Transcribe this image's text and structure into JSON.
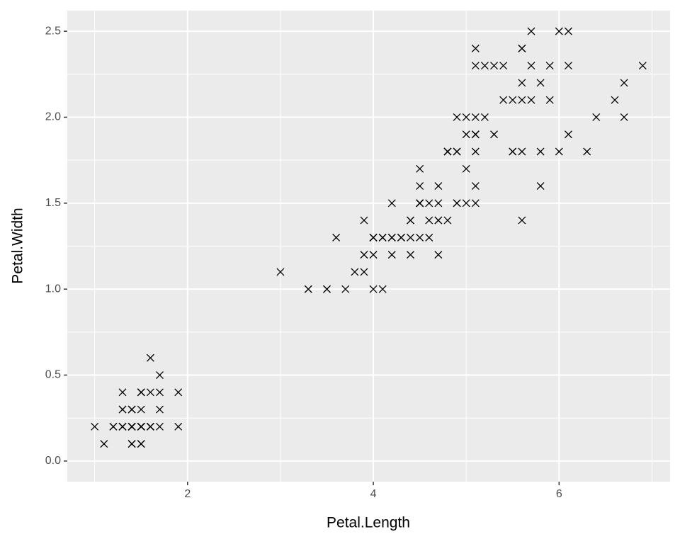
{
  "chart_data": {
    "type": "scatter",
    "x_label": "Petal.Length",
    "y_label": "Petal.Width",
    "color": "#000000",
    "grid": true,
    "xlim": [
      0.705,
      7.195
    ],
    "ylim": [
      -0.12,
      2.62
    ],
    "xticks": [
      2,
      4,
      6
    ],
    "yticks": [
      {
        "value": 0,
        "label": "0.0"
      },
      0.5,
      {
        "value": 1,
        "label": "1.0"
      },
      1.5,
      {
        "value": 2,
        "label": "2.0"
      },
      2.5
    ],
    "x": [
      1.4,
      1.4,
      1.3,
      1.5,
      1.4,
      1.7,
      1.4,
      1.5,
      1.4,
      1.5,
      1.5,
      1.6,
      1.4,
      1.1,
      1.2,
      1.5,
      1.3,
      1.4,
      1.7,
      1.5,
      1.7,
      1.5,
      1.0,
      1.7,
      1.9,
      1.6,
      1.6,
      1.5,
      1.4,
      1.6,
      1.6,
      1.5,
      1.5,
      1.4,
      1.5,
      1.2,
      1.3,
      1.4,
      1.3,
      1.5,
      1.3,
      1.3,
      1.3,
      1.6,
      1.9,
      1.4,
      1.6,
      1.4,
      1.5,
      1.4,
      4.7,
      4.5,
      4.9,
      4.0,
      4.6,
      4.5,
      4.7,
      3.3,
      4.6,
      3.9,
      3.5,
      4.2,
      4.0,
      4.7,
      3.6,
      4.4,
      4.5,
      4.1,
      4.5,
      3.9,
      4.8,
      4.0,
      4.9,
      4.7,
      4.3,
      4.4,
      4.8,
      5.0,
      4.5,
      3.5,
      3.8,
      3.7,
      3.9,
      5.1,
      4.5,
      4.5,
      4.7,
      4.4,
      4.1,
      4.0,
      4.4,
      4.6,
      4.0,
      3.3,
      4.2,
      4.2,
      4.2,
      4.3,
      3.0,
      4.1,
      6.0,
      5.1,
      5.9,
      5.6,
      5.8,
      6.6,
      4.5,
      6.3,
      5.8,
      6.1,
      5.1,
      5.3,
      5.5,
      5.0,
      5.1,
      5.3,
      5.5,
      6.7,
      6.9,
      5.0,
      5.7,
      4.9,
      6.7,
      4.9,
      5.7,
      6.0,
      4.8,
      4.9,
      5.6,
      5.8,
      6.1,
      6.4,
      5.6,
      5.1,
      5.6,
      6.1,
      5.6,
      5.5,
      4.8,
      5.4,
      5.6,
      5.1,
      5.1,
      5.9,
      5.7,
      5.2,
      5.0,
      5.2,
      5.4,
      5.1
    ],
    "values": [
      0.2,
      0.2,
      0.2,
      0.2,
      0.2,
      0.4,
      0.3,
      0.2,
      0.2,
      0.1,
      0.2,
      0.2,
      0.1,
      0.1,
      0.2,
      0.4,
      0.4,
      0.3,
      0.3,
      0.3,
      0.2,
      0.4,
      0.2,
      0.5,
      0.2,
      0.2,
      0.4,
      0.2,
      0.2,
      0.2,
      0.2,
      0.4,
      0.1,
      0.2,
      0.2,
      0.2,
      0.2,
      0.1,
      0.2,
      0.2,
      0.3,
      0.3,
      0.2,
      0.6,
      0.4,
      0.3,
      0.2,
      0.2,
      0.2,
      0.2,
      1.4,
      1.5,
      1.5,
      1.3,
      1.5,
      1.3,
      1.6,
      1.0,
      1.3,
      1.4,
      1.0,
      1.5,
      1.0,
      1.4,
      1.3,
      1.4,
      1.5,
      1.0,
      1.5,
      1.1,
      1.8,
      1.3,
      1.5,
      1.2,
      1.3,
      1.4,
      1.4,
      1.7,
      1.5,
      1.0,
      1.1,
      1.0,
      1.2,
      1.6,
      1.5,
      1.6,
      1.5,
      1.3,
      1.3,
      1.3,
      1.2,
      1.4,
      1.2,
      1.0,
      1.3,
      1.2,
      1.3,
      1.3,
      1.1,
      1.3,
      2.5,
      1.9,
      2.1,
      1.8,
      2.2,
      2.1,
      1.7,
      1.8,
      1.8,
      2.5,
      2.0,
      1.9,
      2.1,
      2.0,
      2.4,
      2.3,
      1.8,
      2.2,
      2.3,
      1.5,
      2.3,
      2.0,
      2.0,
      1.8,
      2.1,
      1.8,
      1.8,
      1.8,
      2.1,
      1.6,
      1.9,
      2.0,
      2.2,
      1.5,
      1.4,
      2.3,
      2.4,
      1.8,
      1.8,
      2.1,
      2.4,
      2.3,
      1.9,
      2.3,
      2.5,
      2.3,
      1.9,
      2.0,
      2.3,
      1.8
    ]
  }
}
